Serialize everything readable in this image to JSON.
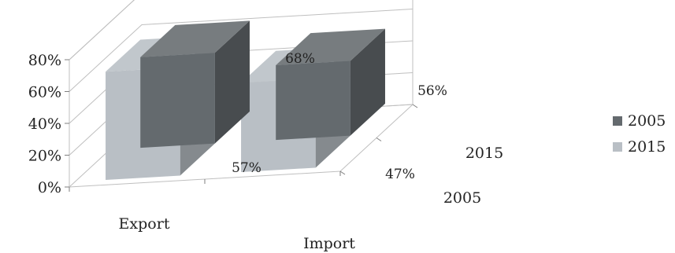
{
  "chart_data": {
    "type": "bar",
    "projection": "3d",
    "categories": [
      "Export",
      "Import"
    ],
    "series": [
      {
        "name": "2005",
        "values": [
          57,
          47
        ],
        "color": "#646a6e"
      },
      {
        "name": "2015",
        "values": [
          68,
          56
        ],
        "color": "#b9bfc5"
      }
    ],
    "ylim": [
      0,
      80
    ],
    "yticks": [
      "0%",
      "20%",
      "40%",
      "60%",
      "80%"
    ],
    "depth_labels": [
      "2005",
      "2015"
    ],
    "data_labels": [
      [
        "57%",
        "47%"
      ],
      [
        "68%",
        "56%"
      ]
    ],
    "legend_position": "right",
    "grid": true,
    "xlabel": "",
    "ylabel": ""
  }
}
